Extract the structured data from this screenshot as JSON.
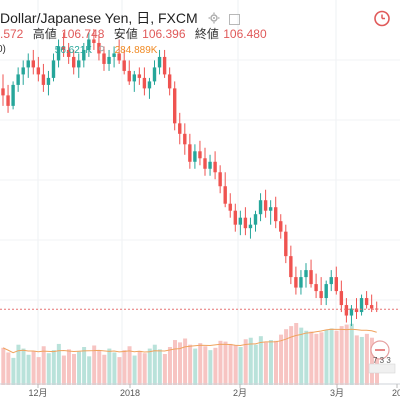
{
  "header": {
    "title": "Dollar/Japanese Yen, 日, FXCM",
    "first_value": ".572",
    "high_label": "高値",
    "high_value": "106.748",
    "low_label": "安値",
    "low_value": "106.396",
    "close_label": "終値",
    "close_value": "106.480",
    "study_prefix": "0)",
    "volume_value_1": "56.621K",
    "volume_value_2": "284.889K"
  },
  "xaxis": {
    "labels": [
      "12月",
      "2018",
      "2月",
      "3月",
      "20"
    ]
  },
  "price_badge": {
    "text": "7 3 3"
  },
  "colors": {
    "up": "#26a69a",
    "down": "#ef5350",
    "up_volume": "#b9e2da",
    "down_volume": "#f7c4c2",
    "ma_line": "#f0a35e",
    "price_line": "#e57373"
  },
  "chart_data": {
    "type": "candlestick",
    "series": [
      {
        "kind": "ohlc",
        "values": [
          [
            112.8,
            113.2,
            112.3,
            112.6
          ],
          [
            112.6,
            112.9,
            112.1,
            112.3
          ],
          [
            112.3,
            113.0,
            112.2,
            112.9
          ],
          [
            112.9,
            113.4,
            112.7,
            113.2
          ],
          [
            113.2,
            113.6,
            112.9,
            113.4
          ],
          [
            113.4,
            113.8,
            113.1,
            113.6
          ],
          [
            113.6,
            113.9,
            113.2,
            113.4
          ],
          [
            113.4,
            113.7,
            113.0,
            113.2
          ],
          [
            113.2,
            113.5,
            112.7,
            112.9
          ],
          [
            112.9,
            113.3,
            112.6,
            113.1
          ],
          [
            113.1,
            113.8,
            113.0,
            113.6
          ],
          [
            113.6,
            114.2,
            113.4,
            114.0
          ],
          [
            114.0,
            114.4,
            113.7,
            113.9
          ],
          [
            113.9,
            114.1,
            113.5,
            113.7
          ],
          [
            113.7,
            113.9,
            113.2,
            113.4
          ],
          [
            113.4,
            113.8,
            113.1,
            113.6
          ],
          [
            113.6,
            114.1,
            113.4,
            113.9
          ],
          [
            113.9,
            114.4,
            113.7,
            114.2
          ],
          [
            114.2,
            114.5,
            113.9,
            114.1
          ],
          [
            114.1,
            114.3,
            113.6,
            113.8
          ],
          [
            113.8,
            114.0,
            113.3,
            113.5
          ],
          [
            113.5,
            113.9,
            113.3,
            113.7
          ],
          [
            113.7,
            114.0,
            113.4,
            113.8
          ],
          [
            113.8,
            114.2,
            113.5,
            113.6
          ],
          [
            113.6,
            113.9,
            113.2,
            113.3
          ],
          [
            113.3,
            113.6,
            112.9,
            113.0
          ],
          [
            113.0,
            113.3,
            112.7,
            113.2
          ],
          [
            113.2,
            113.4,
            112.9,
            113.1
          ],
          [
            113.1,
            113.4,
            112.6,
            112.8
          ],
          [
            112.8,
            113.1,
            112.5,
            113.0
          ],
          [
            113.0,
            113.6,
            112.9,
            113.4
          ],
          [
            113.4,
            113.9,
            113.2,
            113.7
          ],
          [
            113.7,
            113.9,
            113.1,
            113.2
          ],
          [
            113.2,
            113.4,
            112.6,
            112.8
          ],
          [
            112.8,
            113.0,
            111.6,
            111.8
          ],
          [
            111.8,
            112.1,
            111.2,
            111.5
          ],
          [
            111.5,
            111.8,
            110.9,
            111.2
          ],
          [
            111.2,
            111.5,
            110.5,
            110.7
          ],
          [
            110.7,
            111.2,
            110.5,
            111.0
          ],
          [
            111.0,
            111.3,
            110.6,
            110.8
          ],
          [
            110.8,
            111.1,
            110.3,
            110.5
          ],
          [
            110.5,
            110.9,
            110.3,
            110.7
          ],
          [
            110.7,
            111.0,
            110.2,
            110.4
          ],
          [
            110.4,
            110.6,
            109.8,
            110.0
          ],
          [
            110.0,
            110.4,
            109.4,
            109.5
          ],
          [
            109.5,
            109.8,
            109.1,
            109.3
          ],
          [
            109.3,
            109.5,
            108.7,
            108.9
          ],
          [
            108.9,
            109.3,
            108.6,
            109.1
          ],
          [
            109.1,
            109.4,
            108.6,
            108.8
          ],
          [
            108.8,
            109.1,
            108.5,
            108.9
          ],
          [
            108.9,
            109.3,
            108.7,
            109.2
          ],
          [
            109.2,
            109.8,
            109.0,
            109.6
          ],
          [
            109.6,
            109.9,
            109.1,
            109.3
          ],
          [
            109.3,
            109.6,
            108.9,
            109.4
          ],
          [
            109.4,
            109.7,
            108.8,
            109.0
          ],
          [
            109.0,
            109.2,
            108.5,
            108.7
          ],
          [
            108.7,
            108.9,
            107.8,
            108.0
          ],
          [
            108.0,
            108.3,
            107.2,
            107.4
          ],
          [
            107.4,
            107.7,
            106.9,
            107.1
          ],
          [
            107.1,
            107.6,
            106.9,
            107.4
          ],
          [
            107.4,
            107.8,
            107.1,
            107.6
          ],
          [
            107.6,
            107.9,
            107.1,
            107.2
          ],
          [
            107.2,
            107.5,
            106.8,
            107.0
          ],
          [
            107.0,
            107.4,
            106.6,
            106.8
          ],
          [
            106.8,
            107.3,
            106.6,
            107.2
          ],
          [
            107.2,
            107.6,
            107.0,
            107.4
          ],
          [
            107.4,
            107.7,
            106.9,
            107.0
          ],
          [
            107.0,
            107.3,
            106.4,
            106.6
          ],
          [
            106.6,
            106.8,
            106.1,
            106.3
          ],
          [
            106.3,
            106.6,
            106.0,
            106.5
          ],
          [
            106.5,
            106.8,
            106.2,
            106.4
          ],
          [
            106.4,
            106.9,
            106.3,
            106.8
          ],
          [
            106.8,
            107.0,
            106.5,
            106.6
          ],
          [
            106.6,
            106.9,
            106.4,
            106.5
          ],
          [
            106.5,
            106.7,
            106.4,
            106.48
          ]
        ]
      },
      {
        "kind": "volume",
        "values": [
          48,
          42,
          35,
          52,
          47,
          39,
          44,
          36,
          50,
          41,
          45,
          53,
          38,
          46,
          40,
          43,
          49,
          37,
          51,
          44,
          39,
          47,
          42,
          36,
          45,
          50,
          38,
          44,
          41,
          47,
          52,
          46,
          40,
          49,
          58,
          55,
          60,
          52,
          47,
          54,
          50,
          45,
          48,
          57,
          56,
          53,
          51,
          49,
          59,
          61,
          52,
          63,
          55,
          58,
          57,
          65,
          72,
          76,
          80,
          74,
          70,
          69,
          66,
          68,
          71,
          73,
          70,
          76,
          78,
          79,
          64,
          62,
          66,
          61,
          52
        ]
      }
    ],
    "ylim": [
      105.6,
      114.9
    ]
  }
}
